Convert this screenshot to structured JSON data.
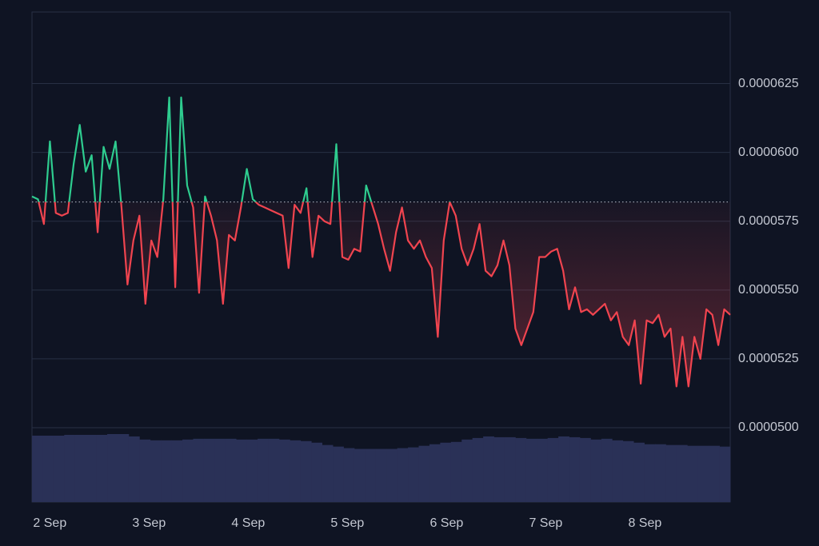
{
  "chart_data": {
    "type": "baseline",
    "xlim": [
      -0.18,
      6.86
    ],
    "xticks": [
      {
        "value": 0,
        "label": "2 Sep"
      },
      {
        "value": 1,
        "label": "3 Sep"
      },
      {
        "value": 2,
        "label": "4 Sep"
      },
      {
        "value": 3,
        "label": "5 Sep"
      },
      {
        "value": 4,
        "label": "6 Sep"
      },
      {
        "value": 5,
        "label": "7 Sep"
      },
      {
        "value": 6,
        "label": "8 Sep"
      }
    ],
    "ylim": [
      4.73e-05,
      6.51e-05
    ],
    "yticks": [
      {
        "value": 5e-05,
        "label": "0.0000500"
      },
      5.25e-05,
      {
        "value": 5.5e-05,
        "label": "0.0000550"
      },
      5.75e-05,
      {
        "value": 6e-05,
        "label": "0.0000600"
      },
      6.25e-05
    ],
    "grid": true,
    "baseline": 5.82e-05,
    "up_color": "#2ecc8f",
    "down_color": "#f0444f",
    "values": [
      5.84e-05,
      5.83e-05,
      5.74e-05,
      6.04e-05,
      5.78e-05,
      5.77e-05,
      5.78e-05,
      5.96e-05,
      6.1e-05,
      5.93e-05,
      5.99e-05,
      5.71e-05,
      6.02e-05,
      5.94e-05,
      6.04e-05,
      5.8e-05,
      5.52e-05,
      5.68e-05,
      5.77e-05,
      5.45e-05,
      5.68e-05,
      5.62e-05,
      5.83e-05,
      6.2e-05,
      5.51e-05,
      6.2e-05,
      5.88e-05,
      5.8e-05,
      5.49e-05,
      5.84e-05,
      5.77e-05,
      5.68e-05,
      5.45e-05,
      5.7e-05,
      5.68e-05,
      5.8e-05,
      5.94e-05,
      5.83e-05,
      5.81e-05,
      5.8e-05,
      5.79e-05,
      5.78e-05,
      5.77e-05,
      5.58e-05,
      5.81e-05,
      5.78e-05,
      5.87e-05,
      5.62e-05,
      5.77e-05,
      5.75e-05,
      5.74e-05,
      6.03e-05,
      5.62e-05,
      5.61e-05,
      5.65e-05,
      5.64e-05,
      5.88e-05,
      5.81e-05,
      5.74e-05,
      5.65e-05,
      5.57e-05,
      5.71e-05,
      5.8e-05,
      5.68e-05,
      5.65e-05,
      5.68e-05,
      5.62e-05,
      5.58e-05,
      5.33e-05,
      5.68e-05,
      5.82e-05,
      5.77e-05,
      5.65e-05,
      5.59e-05,
      5.65e-05,
      5.74e-05,
      5.57e-05,
      5.55e-05,
      5.59e-05,
      5.68e-05,
      5.59e-05,
      5.36e-05,
      5.3e-05,
      5.36e-05,
      5.42e-05,
      5.62e-05,
      5.62e-05,
      5.64e-05,
      5.65e-05,
      5.57e-05,
      5.43e-05,
      5.51e-05,
      5.42e-05,
      5.43e-05,
      5.41e-05,
      5.43e-05,
      5.45e-05,
      5.39e-05,
      5.42e-05,
      5.33e-05,
      5.3e-05,
      5.39e-05,
      5.16e-05,
      5.39e-05,
      5.38e-05,
      5.41e-05,
      5.33e-05,
      5.36e-05,
      5.15e-05,
      5.33e-05,
      5.15e-05,
      5.33e-05,
      5.25e-05,
      5.43e-05,
      5.41e-05,
      5.3e-05,
      5.43e-05,
      5.41e-05
    ],
    "volume": {
      "color": "#2a3157",
      "values": [
        85,
        85,
        85,
        86,
        86,
        86,
        86,
        87,
        87,
        84,
        80,
        79,
        79,
        79,
        80,
        81,
        81,
        81,
        81,
        80,
        80,
        81,
        81,
        80,
        79,
        78,
        76,
        73,
        71,
        69,
        68,
        68,
        68,
        68,
        69,
        70,
        72,
        74,
        76,
        77,
        80,
        82,
        84,
        83,
        83,
        82,
        81,
        81,
        82,
        84,
        83,
        82,
        80,
        81,
        79,
        78,
        76,
        74,
        74,
        73,
        73,
        72,
        72,
        72,
        71
      ]
    }
  }
}
